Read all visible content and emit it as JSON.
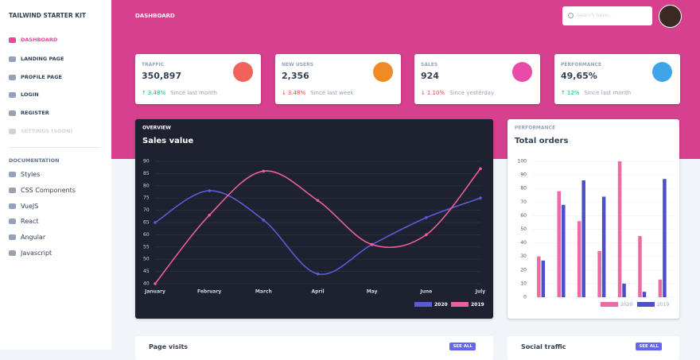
{
  "sidebar": {
    "title": "TAILWIND STARTER KIT",
    "items": [
      {
        "label": "DASHBOARD",
        "active": true
      },
      {
        "label": "LANDING PAGE"
      },
      {
        "label": "PROFILE PAGE"
      },
      {
        "label": "LOGIN"
      },
      {
        "label": "REGISTER"
      },
      {
        "label": "SETTINGS (SOON)",
        "disabled": true
      }
    ],
    "docs_heading": "DOCUMENTATION",
    "docs": [
      "Styles",
      "CSS Components",
      "VueJS",
      "React",
      "Angular",
      "Javascript"
    ]
  },
  "header": {
    "title": "DASHBOARD",
    "search_placeholder": "Search here..."
  },
  "stats": [
    {
      "label": "TRAFFIC",
      "value": "350,897",
      "change": "3.48%",
      "trend": "up",
      "period": "Since last month",
      "icon_color": "#f1625a"
    },
    {
      "label": "NEW USERS",
      "value": "2,356",
      "change": "3.48%",
      "trend": "down",
      "period": "Since last week",
      "icon_color": "#f08a24"
    },
    {
      "label": "SALES",
      "value": "924",
      "change": "1.10%",
      "trend": "down",
      "period": "Since yesterday",
      "icon_color": "#e94ca6"
    },
    {
      "label": "PERFORMANCE",
      "value": "49,65%",
      "change": "12%",
      "trend": "up",
      "period": "Since last month",
      "icon_color": "#40a4e8"
    }
  ],
  "chart_data": [
    {
      "type": "line",
      "subtitle": "OVERVIEW",
      "title": "Sales value",
      "categories": [
        "January",
        "February",
        "March",
        "April",
        "May",
        "June",
        "July"
      ],
      "series": [
        {
          "name": "2020",
          "color": "#5b5bd6",
          "values": [
            65,
            78,
            66,
            44,
            56,
            67,
            75
          ]
        },
        {
          "name": "2019",
          "color": "#ec5f9e",
          "values": [
            40,
            68,
            86,
            74,
            56,
            60,
            87
          ]
        }
      ],
      "ylim": [
        40,
        90
      ],
      "yticks": [
        40,
        45,
        50,
        55,
        60,
        65,
        70,
        75,
        80,
        85,
        90
      ],
      "grid": true
    },
    {
      "type": "bar",
      "subtitle": "PERFORMANCE",
      "title": "Total orders",
      "categories": [
        null,
        null,
        null,
        null,
        null,
        null,
        null
      ],
      "series": [
        {
          "name": "2020",
          "color": "#ec6aa5",
          "values": [
            30,
            78,
            56,
            34,
            100,
            45,
            13
          ]
        },
        {
          "name": "2019",
          "color": "#4c4fc9",
          "values": [
            27,
            68,
            86,
            74,
            10,
            4,
            87
          ]
        }
      ],
      "ylim": [
        0,
        100
      ],
      "yticks": [
        0,
        10,
        20,
        30,
        40,
        50,
        60,
        70,
        80,
        90,
        100
      ],
      "grid": true
    }
  ],
  "bottom": [
    {
      "title": "Page visits",
      "button": "SEE ALL"
    },
    {
      "title": "Social traffic",
      "button": "SEE ALL"
    }
  ]
}
